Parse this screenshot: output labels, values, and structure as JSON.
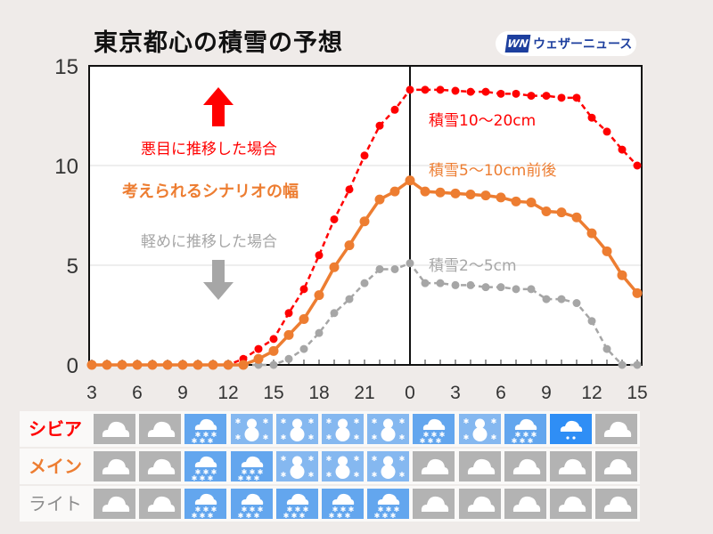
{
  "title": "東京都心の積雪の予想",
  "logo": {
    "mark": "WN",
    "text": "ウェザーニュース"
  },
  "annotations": {
    "severe_case": "悪目に推移した場合",
    "scenario_range": "考えられるシナリオの幅",
    "light_case": "軽めに推移した場合",
    "severe_amount": "積雪10〜20cm",
    "main_amount": "積雪5〜10cm前後",
    "light_amount": "積雪2〜5cm"
  },
  "colors": {
    "severe": "#ff0000",
    "main": "#ed7d31",
    "light": "#a6a6a6",
    "cloud": "#b3b3b3",
    "snow": "#63a6ee",
    "snowman": "#85b8f0",
    "sleet": "#2f8ef5"
  },
  "chart_data": {
    "type": "line",
    "title": "東京都心の積雪の予想",
    "xlabel": "",
    "ylabel": "",
    "x": [
      3,
      4,
      5,
      6,
      7,
      8,
      9,
      10,
      11,
      12,
      13,
      14,
      15,
      16,
      17,
      18,
      19,
      20,
      21,
      22,
      23,
      0,
      1,
      2,
      3,
      4,
      5,
      6,
      7,
      8,
      9,
      10,
      11,
      12,
      13,
      14,
      15
    ],
    "x_tick_labels": [
      "3",
      "6",
      "9",
      "12",
      "15",
      "18",
      "21",
      "0",
      "3",
      "6",
      "9",
      "12",
      "15"
    ],
    "ylim": [
      0,
      15
    ],
    "y_tick_labels": [
      "0",
      "5",
      "10",
      "15"
    ],
    "grid": true,
    "series": [
      {
        "name": "シビア",
        "style": "dashed",
        "values": [
          0,
          0,
          0,
          0,
          0,
          0,
          0,
          0,
          0,
          0,
          0.3,
          0.8,
          1.3,
          2.6,
          3.8,
          5.5,
          7.3,
          8.8,
          10.5,
          12.0,
          12.8,
          13.8,
          13.8,
          13.8,
          13.75,
          13.7,
          13.7,
          13.6,
          13.6,
          13.5,
          13.5,
          13.4,
          13.4,
          12.4,
          11.7,
          10.8,
          10.0
        ]
      },
      {
        "name": "メイン",
        "style": "solid",
        "values": [
          0,
          0,
          0,
          0,
          0,
          0,
          0,
          0,
          0,
          0,
          0,
          0.3,
          0.7,
          1.5,
          2.3,
          3.5,
          4.9,
          6.0,
          7.2,
          8.3,
          8.7,
          9.25,
          8.7,
          8.65,
          8.6,
          8.55,
          8.5,
          8.4,
          8.2,
          8.15,
          7.7,
          7.65,
          7.4,
          6.6,
          5.7,
          4.5,
          3.6
        ]
      },
      {
        "name": "ライト",
        "style": "dashed",
        "values": [
          0,
          0,
          0,
          0,
          0,
          0,
          0,
          0,
          0,
          0,
          0,
          0,
          0,
          0.3,
          0.8,
          1.6,
          2.6,
          3.3,
          4.1,
          4.8,
          4.8,
          5.1,
          4.1,
          4.1,
          4.0,
          4.0,
          3.9,
          3.9,
          3.8,
          3.8,
          3.3,
          3.3,
          3.1,
          2.2,
          0.8,
          0,
          0
        ]
      }
    ]
  },
  "weather_rows": [
    {
      "label": "シビア",
      "icons": [
        "cloud",
        "cloud",
        "snow",
        "snowman",
        "snowman",
        "snowman",
        "snowman",
        "snow",
        "snowman",
        "snow",
        "sleet",
        "cloud"
      ]
    },
    {
      "label": "メイン",
      "icons": [
        "cloud",
        "cloud",
        "snow",
        "snow",
        "snowman",
        "snowman",
        "snowman",
        "cloud",
        "cloud",
        "cloud",
        "cloud",
        "cloud"
      ]
    },
    {
      "label": "ライト",
      "icons": [
        "cloud",
        "cloud",
        "snow",
        "snow",
        "snow",
        "snow",
        "snow",
        "cloud",
        "cloud",
        "cloud",
        "cloud",
        "cloud"
      ]
    }
  ]
}
